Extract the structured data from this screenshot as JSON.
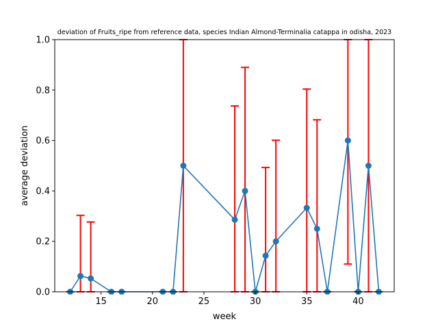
{
  "chart_data": {
    "type": "line",
    "title": "deviation of Fruits_ripe from reference data, species Indian Almond-Terminalia catappa in odisha, 2023",
    "xlabel": "week",
    "ylabel": "average deviation",
    "xlim": [
      10.5,
      43.5
    ],
    "ylim": [
      0,
      1
    ],
    "xticks": [
      15,
      20,
      25,
      30,
      35,
      40
    ],
    "yticks": [
      0.0,
      0.2,
      0.4,
      0.6,
      0.8,
      1.0
    ],
    "ytick_labels": [
      "0.0",
      "0.2",
      "0.4",
      "0.6",
      "0.8",
      "1.0"
    ],
    "grid": false,
    "series": [
      {
        "color": "#1f77b4",
        "marker": "circle",
        "x": [
          12,
          13,
          14,
          16,
          17,
          21,
          22,
          23,
          28,
          29,
          30,
          31,
          32,
          35,
          36,
          37,
          39,
          40,
          41,
          42
        ],
        "y": [
          0,
          0.0625,
          0.053,
          0,
          0,
          0,
          0,
          0.5,
          0.286,
          0.4,
          0,
          0.143,
          0.2,
          0.333,
          0.25,
          0,
          0.6,
          0,
          0.5,
          0
        ]
      }
    ],
    "error_bars": {
      "color": "#ff0000",
      "items": [
        {
          "x": 12,
          "low": 0,
          "high": 0
        },
        {
          "x": 13,
          "low": 0,
          "high": 0.303
        },
        {
          "x": 14,
          "low": 0,
          "high": 0.277
        },
        {
          "x": 16,
          "low": 0,
          "high": 0
        },
        {
          "x": 17,
          "low": 0,
          "high": 0
        },
        {
          "x": 21,
          "low": 0,
          "high": 0
        },
        {
          "x": 22,
          "low": 0,
          "high": 0
        },
        {
          "x": 23,
          "low": 0,
          "high": 1.0
        },
        {
          "x": 28,
          "low": 0,
          "high": 0.737
        },
        {
          "x": 29,
          "low": 0,
          "high": 0.89
        },
        {
          "x": 30,
          "low": 0,
          "high": 0
        },
        {
          "x": 31,
          "low": 0,
          "high": 0.493
        },
        {
          "x": 32,
          "low": 0,
          "high": 0.601
        },
        {
          "x": 35,
          "low": 0,
          "high": 0.804
        },
        {
          "x": 36,
          "low": 0,
          "high": 0.682
        },
        {
          "x": 37,
          "low": 0,
          "high": 0
        },
        {
          "x": 39,
          "low": 0.11,
          "high": 1.0
        },
        {
          "x": 40,
          "low": 0,
          "high": 0
        },
        {
          "x": 41,
          "low": 0,
          "high": 1.0
        },
        {
          "x": 42,
          "low": 0,
          "high": 0
        }
      ]
    }
  }
}
